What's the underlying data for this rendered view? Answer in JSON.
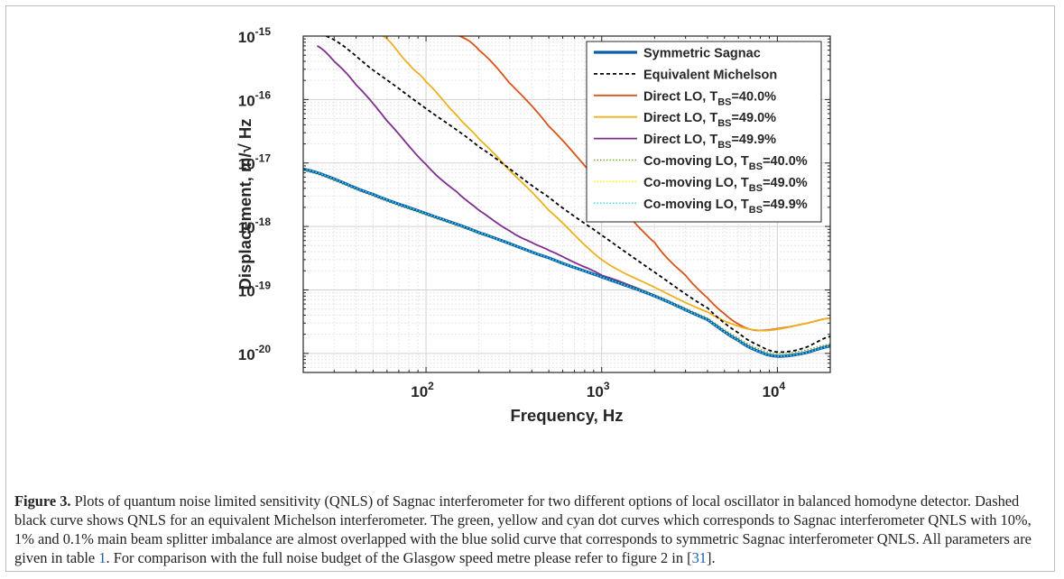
{
  "chart_data": {
    "type": "line",
    "xlabel": "Frequency, Hz",
    "ylabel": "Displacement, m/√ Hz",
    "xscale": "log",
    "yscale": "log",
    "xlim": [
      20,
      20000
    ],
    "ylim": [
      5e-21,
      1e-15
    ],
    "grid": true,
    "legend_position": "top-right",
    "xticks": [
      {
        "value": 100,
        "base": "10",
        "exp": "2"
      },
      {
        "value": 1000,
        "base": "10",
        "exp": "3"
      },
      {
        "value": 10000,
        "base": "10",
        "exp": "4"
      }
    ],
    "yticks": [
      {
        "value": 1e-15,
        "base": "10",
        "exp": "-15"
      },
      {
        "value": 1e-16,
        "base": "10",
        "exp": "-16"
      },
      {
        "value": 1e-17,
        "base": "10",
        "exp": "-17"
      },
      {
        "value": 1e-18,
        "base": "10",
        "exp": "-18"
      },
      {
        "value": 1e-19,
        "base": "10",
        "exp": "-19"
      },
      {
        "value": 1e-20,
        "base": "10",
        "exp": "-20"
      }
    ],
    "series": [
      {
        "name": "Symmetric Sagnac",
        "legend_main": "Symmetric Sagnac",
        "legend_sub": "",
        "legend_tail": "",
        "color": "#0b5ea8",
        "style": "solid",
        "x": [
          20,
          50,
          100,
          200,
          500,
          1000,
          2000,
          4000,
          6000,
          8000,
          10000,
          14000,
          20000
        ],
        "y": [
          8e-18,
          3.2e-18,
          1.6e-18,
          8e-19,
          3.2e-19,
          1.6e-19,
          8e-20,
          3.4e-20,
          1.6e-20,
          1.05e-20,
          9e-21,
          1e-20,
          1.3e-20
        ]
      },
      {
        "name": "Equivalent Michelson",
        "legend_main": "Equivalent Michelson",
        "legend_sub": "",
        "legend_tail": "",
        "color": "#000000",
        "style": "dashed",
        "x": [
          27,
          50,
          100,
          200,
          500,
          1000,
          2000,
          4000,
          6000,
          8000,
          10000,
          14000,
          20000
        ],
        "y": [
          1e-15,
          2.9e-16,
          7.2e-17,
          1.8e-17,
          2.9e-18,
          7.3e-19,
          1.9e-19,
          5.2e-20,
          2.1e-20,
          1.3e-20,
          1.05e-20,
          1.2e-20,
          1.85e-20
        ]
      },
      {
        "name": "Direct LO, T_BS=40.0%",
        "legend_main": "Direct LO, T",
        "legend_sub": "BS",
        "legend_tail": "=40.0%",
        "color": "#d95319",
        "style": "solid",
        "x": [
          155,
          200,
          300,
          500,
          1000,
          2000,
          3000,
          4000,
          5000,
          6000,
          7000,
          8000,
          10000,
          14000,
          20000
        ],
        "y": [
          1e-15,
          6e-16,
          1.8e-16,
          3.8e-17,
          4.5e-18,
          5.6e-19,
          1.7e-19,
          7.5e-20,
          4.2e-20,
          2.9e-20,
          2.4e-20,
          2.3e-20,
          2.45e-20,
          2.9e-20,
          3.6e-20
        ]
      },
      {
        "name": "Direct LO, T_BS=49.0%",
        "legend_main": "Direct LO, T",
        "legend_sub": "BS",
        "legend_tail": "=49.0%",
        "color": "#edb120",
        "style": "solid",
        "x": [
          57,
          80,
          100,
          150,
          200,
          300,
          500,
          1000,
          2000,
          4000,
          6000,
          8000,
          10000,
          14000,
          20000
        ],
        "y": [
          1e-15,
          3.6e-16,
          1.9e-16,
          5.6e-17,
          2.4e-17,
          7.5e-18,
          1.8e-18,
          3e-19,
          1.1e-19,
          4.5e-20,
          2.7e-20,
          2.3e-20,
          2.4e-20,
          2.9e-20,
          3.6e-20
        ]
      },
      {
        "name": "Direct LO, T_BS=49.9%",
        "legend_main": "Direct LO, T",
        "legend_sub": "BS",
        "legend_tail": "=49.9%",
        "color": "#7e2f8e",
        "style": "solid",
        "x": [
          24,
          30,
          40,
          60,
          100,
          150,
          200,
          300,
          400,
          500,
          700,
          1000,
          2000,
          4000,
          6000,
          8000,
          10000,
          14000,
          20000
        ],
        "y": [
          7e-16,
          4e-16,
          1.7e-16,
          4.6e-17,
          9.5e-18,
          3.5e-18,
          1.8e-18,
          8.5e-19,
          5.6e-19,
          4.2e-19,
          2.7e-19,
          1.7e-19,
          8.2e-20,
          3.4e-20,
          1.6e-20,
          1.05e-20,
          9e-21,
          1e-20,
          1.3e-20
        ]
      },
      {
        "name": "Co-moving LO, T_BS=40.0%",
        "legend_main": "Co-moving LO, T",
        "legend_sub": "BS",
        "legend_tail": "=40.0%",
        "color": "#77ac30",
        "style": "dotted",
        "x": [
          20,
          50,
          100,
          200,
          500,
          1000,
          2000,
          4000,
          6000,
          8000,
          10000,
          14000,
          20000
        ],
        "y": [
          7.6e-18,
          3.04e-18,
          1.52e-18,
          7.7e-19,
          3.2e-19,
          1.65e-19,
          8.4e-20,
          3.6e-20,
          1.75e-20,
          1.15e-20,
          1e-20,
          1.1e-20,
          1.4e-20
        ]
      },
      {
        "name": "Co-moving LO, T_BS=49.0%",
        "legend_main": "Co-moving LO, T",
        "legend_sub": "BS",
        "legend_tail": "=49.0%",
        "color": "#ffff00",
        "style": "dotted",
        "x": [
          20,
          50,
          100,
          200,
          500,
          1000,
          2000,
          4000,
          6000,
          8000,
          10000,
          14000,
          20000
        ],
        "y": [
          7.9e-18,
          3.16e-18,
          1.58e-18,
          7.9e-19,
          3.2e-19,
          1.62e-19,
          8.2e-20,
          3.5e-20,
          1.65e-20,
          1.08e-20,
          9.3e-21,
          1.03e-20,
          1.33e-20
        ]
      },
      {
        "name": "Co-moving LO, T_BS=49.9%",
        "legend_main": "Co-moving LO, T",
        "legend_sub": "BS",
        "legend_tail": "=49.9%",
        "color": "#4dd8e8",
        "style": "dotted",
        "x": [
          20,
          50,
          100,
          200,
          500,
          1000,
          2000,
          4000,
          6000,
          8000,
          10000,
          14000,
          20000
        ],
        "y": [
          8e-18,
          3.2e-18,
          1.6e-18,
          8e-19,
          3.2e-19,
          1.6e-19,
          8e-20,
          3.4e-20,
          1.6e-20,
          1.05e-20,
          9e-21,
          1e-20,
          1.3e-20
        ]
      }
    ]
  },
  "caption": {
    "label": "Figure 3.",
    "text_before_ref1": " Plots of quantum noise limited sensitivity (QNLS) of Sagnac interferometer for two different options of local oscillator in balanced homodyne detector. Dashed black curve shows QNLS for an equivalent Michelson interferometer. The green, yellow and cyan dot curves which corresponds to Sagnac interferometer QNLS with 10%, 1% and 0.1% main beam splitter imbalance are almost overlapped with the blue solid curve that corresponds to symmetric Sagnac interferometer QNLS. All parameters are given in table ",
    "ref_table": "1",
    "text_after_ref1": ". For comparison with the full noise budget of the Glasgow speed metre please refer to figure 2 in [",
    "ref_cite": "31",
    "text_end": "]."
  }
}
